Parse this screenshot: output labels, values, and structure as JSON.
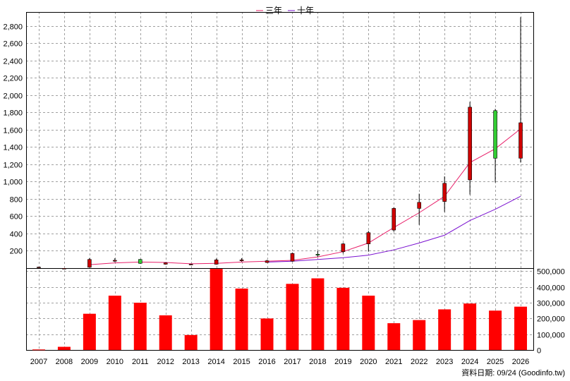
{
  "chart_data": {
    "type": "candlestick",
    "years": [
      "2007",
      "2008",
      "2009",
      "2010",
      "2011",
      "2012",
      "2013",
      "2014",
      "2015",
      "2016",
      "2017",
      "2018",
      "2019",
      "2020",
      "2021",
      "2022",
      "2023",
      "2024",
      "2025",
      "2026"
    ],
    "price": {
      "ylim": [
        0,
        2960
      ],
      "ticks": [
        200,
        400,
        600,
        800,
        1000,
        1200,
        1400,
        1600,
        1800,
        2000,
        2200,
        2400,
        2600,
        2800
      ],
      "tick_labels": [
        "200",
        "400",
        "600",
        "800",
        "1,000",
        "1,200",
        "1,400",
        "1,600",
        "1,800",
        "2,000",
        "2,200",
        "2,400",
        "2,600",
        "2,800"
      ],
      "candles": [
        {
          "open": 12,
          "close": 12,
          "high": 14,
          "low": 10
        },
        {
          "open": -3,
          "close": -3,
          "high": -1,
          "low": -5
        },
        {
          "open": 10,
          "close": 100,
          "high": 115,
          "low": 5
        },
        {
          "open": 80,
          "close": 90,
          "high": 115,
          "low": 70
        },
        {
          "open": 100,
          "close": 55,
          "high": 105,
          "low": 50
        },
        {
          "open": 45,
          "close": 60,
          "high": 65,
          "low": 40
        },
        {
          "open": 40,
          "close": 45,
          "high": 50,
          "low": 35
        },
        {
          "open": 45,
          "close": 95,
          "high": 110,
          "low": 40
        },
        {
          "open": 85,
          "close": 95,
          "high": 115,
          "low": 75
        },
        {
          "open": 65,
          "close": 85,
          "high": 95,
          "low": 60
        },
        {
          "open": 80,
          "close": 170,
          "high": 180,
          "low": 75
        },
        {
          "open": 160,
          "close": 150,
          "high": 200,
          "low": 130
        },
        {
          "open": 190,
          "close": 280,
          "high": 290,
          "low": 170
        },
        {
          "open": 280,
          "close": 410,
          "high": 430,
          "low": 190
        },
        {
          "open": 440,
          "close": 690,
          "high": 700,
          "low": 420
        },
        {
          "open": 690,
          "close": 760,
          "high": 860,
          "low": 500
        },
        {
          "open": 770,
          "close": 980,
          "high": 1060,
          "low": 650
        },
        {
          "open": 1020,
          "close": 1860,
          "high": 1920,
          "low": 850
        },
        {
          "open": 1820,
          "close": 1270,
          "high": 1840,
          "low": 990
        },
        {
          "open": 1270,
          "close": 1680,
          "high": 2900,
          "low": 1220
        }
      ],
      "series": [
        {
          "name": "三年",
          "color": "#e8206a",
          "values": [
            null,
            null,
            40,
            60,
            70,
            65,
            50,
            55,
            70,
            80,
            90,
            130,
            190,
            290,
            470,
            640,
            830,
            1220,
            1380,
            1610
          ]
        },
        {
          "name": "十年",
          "color": "#7a10d0",
          "values": [
            null,
            null,
            null,
            null,
            null,
            null,
            null,
            null,
            null,
            70,
            80,
            100,
            120,
            150,
            210,
            290,
            380,
            550,
            680,
            830
          ]
        }
      ]
    },
    "volume": {
      "ylim": [
        0,
        520000
      ],
      "ticks": [
        0,
        100000,
        200000,
        300000,
        400000,
        500000
      ],
      "tick_labels": [
        "0",
        "100,000",
        "200,000",
        "300,000",
        "400,000",
        "500,000"
      ],
      "values": [
        3000,
        20000,
        230000,
        345000,
        300000,
        220000,
        95000,
        515000,
        390000,
        200000,
        420000,
        455000,
        395000,
        345000,
        170000,
        190000,
        258000,
        295000,
        250000,
        275000
      ]
    },
    "colors": {
      "up": "#d00000",
      "down": "#33cc33",
      "volume": "#ff0000",
      "grid": "#a0a0a0"
    },
    "legend_position": "top-center",
    "source_note": "資料日期: 09/24  (Goodinfo.tw)"
  }
}
